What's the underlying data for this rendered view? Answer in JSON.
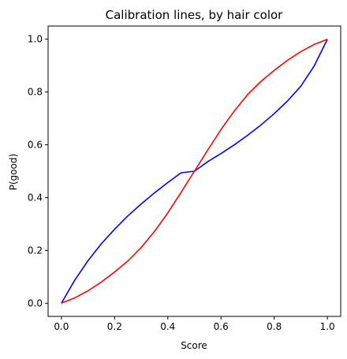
{
  "chart_data": {
    "type": "line",
    "title": "Calibration lines, by hair color",
    "xlabel": "Score",
    "ylabel": "P(good)",
    "xlim": [
      -0.05,
      1.05
    ],
    "ylim": [
      -0.05,
      1.05
    ],
    "x_ticks": [
      0.0,
      0.2,
      0.4,
      0.6,
      0.8,
      1.0
    ],
    "x_tick_labels": [
      "0.0",
      "0.2",
      "0.4",
      "0.6",
      "0.8",
      "1.0"
    ],
    "y_ticks": [
      0.0,
      0.2,
      0.4,
      0.6,
      0.8,
      1.0
    ],
    "y_tick_labels": [
      "0.0",
      "0.2",
      "0.4",
      "0.6",
      "0.8",
      "1.0"
    ],
    "grid": false,
    "legend": "none",
    "x": [
      0.0,
      0.05,
      0.1,
      0.15,
      0.2,
      0.25,
      0.3,
      0.35,
      0.4,
      0.45,
      0.5,
      0.55,
      0.6,
      0.65,
      0.7,
      0.75,
      0.8,
      0.85,
      0.9,
      0.95,
      1.0
    ],
    "series": [
      {
        "color": "#0000ff",
        "values": [
          0.0,
          0.087,
          0.161,
          0.225,
          0.28,
          0.331,
          0.376,
          0.418,
          0.457,
          0.494,
          0.5,
          0.536,
          0.567,
          0.6,
          0.636,
          0.675,
          0.718,
          0.766,
          0.822,
          0.898,
          1.0
        ]
      },
      {
        "color": "#ff0000",
        "values": [
          0.0,
          0.02,
          0.047,
          0.08,
          0.118,
          0.16,
          0.211,
          0.272,
          0.342,
          0.42,
          0.5,
          0.58,
          0.658,
          0.728,
          0.79,
          0.84,
          0.882,
          0.92,
          0.953,
          0.98,
          1.0
        ]
      }
    ]
  }
}
